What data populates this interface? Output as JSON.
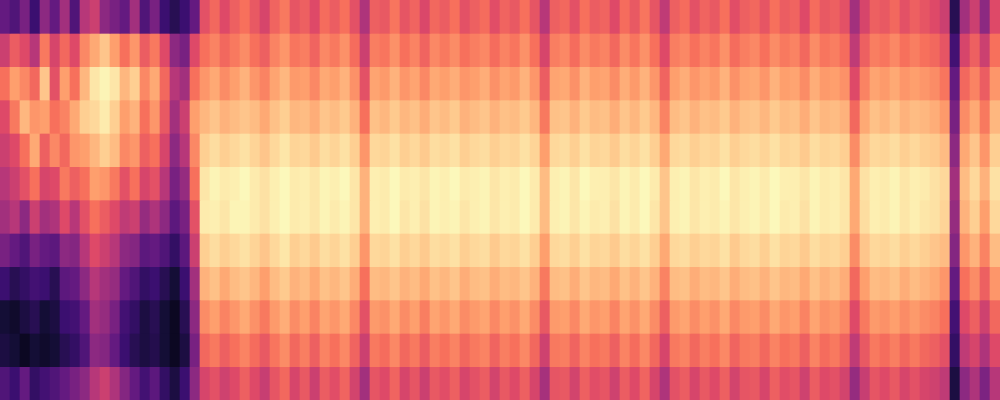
{
  "chart_data": {
    "type": "heatmap",
    "tick_labels": false,
    "grid": false,
    "color_range": [
      0,
      100
    ],
    "cells": [
      [
        30,
        55,
        70,
        60,
        55,
        50,
        45,
        35,
        20,
        10,
        12,
        25
      ],
      [
        25,
        65,
        80,
        72,
        60,
        55,
        50,
        30,
        15,
        8,
        10,
        20
      ],
      [
        35,
        60,
        75,
        85,
        70,
        62,
        40,
        25,
        18,
        12,
        6,
        30
      ],
      [
        20,
        50,
        68,
        78,
        82,
        70,
        55,
        35,
        22,
        15,
        10,
        18
      ],
      [
        40,
        72,
        88,
        80,
        66,
        58,
        45,
        30,
        20,
        10,
        8,
        22
      ],
      [
        30,
        58,
        62,
        70,
        75,
        60,
        48,
        28,
        15,
        12,
        10,
        25
      ],
      [
        45,
        68,
        80,
        74,
        68,
        72,
        60,
        40,
        28,
        20,
        15,
        30
      ],
      [
        25,
        60,
        70,
        82,
        78,
        66,
        50,
        38,
        30,
        22,
        18,
        35
      ],
      [
        50,
        75,
        85,
        90,
        80,
        70,
        62,
        50,
        40,
        30,
        25,
        40
      ],
      [
        55,
        82,
        95,
        92,
        85,
        80,
        70,
        60,
        50,
        45,
        40,
        50
      ],
      [
        40,
        88,
        98,
        96,
        90,
        78,
        65,
        55,
        45,
        42,
        38,
        55
      ],
      [
        35,
        80,
        95,
        90,
        86,
        72,
        60,
        50,
        42,
        35,
        30,
        48
      ],
      [
        30,
        70,
        85,
        80,
        75,
        62,
        52,
        40,
        30,
        22,
        20,
        38
      ],
      [
        45,
        78,
        90,
        84,
        78,
        70,
        55,
        38,
        25,
        18,
        15,
        30
      ],
      [
        25,
        65,
        75,
        70,
        66,
        58,
        42,
        28,
        18,
        12,
        12,
        22
      ],
      [
        35,
        72,
        82,
        78,
        70,
        62,
        48,
        30,
        20,
        15,
        14,
        28
      ],
      [
        20,
        60,
        68,
        64,
        58,
        50,
        40,
        25,
        15,
        10,
        10,
        18
      ],
      [
        15,
        40,
        50,
        45,
        40,
        35,
        28,
        18,
        10,
        6,
        6,
        12
      ],
      [
        20,
        35,
        45,
        55,
        50,
        42,
        35,
        28,
        20,
        15,
        12,
        20
      ],
      [
        30,
        60,
        70,
        80,
        75,
        70,
        62,
        55,
        45,
        40,
        35,
        40
      ],
      [
        62,
        70,
        78,
        85,
        90,
        95,
        96,
        90,
        84,
        76,
        68,
        58
      ],
      [
        68,
        74,
        82,
        88,
        93,
        98,
        97,
        93,
        87,
        80,
        72,
        62
      ],
      [
        60,
        68,
        76,
        84,
        90,
        96,
        95,
        90,
        82,
        74,
        66,
        56
      ],
      [
        66,
        72,
        80,
        86,
        92,
        97,
        98,
        92,
        86,
        78,
        70,
        60
      ],
      [
        70,
        76,
        84,
        88,
        94,
        99,
        98,
        94,
        88,
        82,
        74,
        66
      ],
      [
        64,
        70,
        78,
        86,
        91,
        96,
        96,
        91,
        85,
        77,
        69,
        60
      ],
      [
        58,
        66,
        74,
        82,
        88,
        94,
        94,
        88,
        80,
        72,
        64,
        54
      ],
      [
        67,
        74,
        81,
        87,
        92,
        97,
        97,
        92,
        86,
        79,
        71,
        63
      ],
      [
        72,
        78,
        85,
        90,
        95,
        99,
        99,
        95,
        89,
        83,
        76,
        68
      ],
      [
        63,
        71,
        79,
        85,
        91,
        96,
        96,
        90,
        84,
        76,
        68,
        58
      ],
      [
        66,
        73,
        80,
        86,
        92,
        97,
        97,
        92,
        86,
        80,
        73,
        64
      ],
      [
        60,
        67,
        75,
        83,
        89,
        95,
        95,
        89,
        82,
        74,
        66,
        55
      ],
      [
        69,
        75,
        82,
        88,
        93,
        98,
        98,
        93,
        87,
        81,
        74,
        65
      ],
      [
        65,
        72,
        80,
        86,
        91,
        97,
        96,
        91,
        85,
        78,
        70,
        61
      ],
      [
        70,
        77,
        84,
        89,
        94,
        99,
        98,
        94,
        88,
        82,
        75,
        67
      ],
      [
        62,
        69,
        77,
        84,
        90,
        95,
        95,
        90,
        83,
        75,
        67,
        57
      ],
      [
        48,
        55,
        62,
        70,
        78,
        84,
        84,
        78,
        70,
        62,
        55,
        45
      ],
      [
        66,
        73,
        81,
        87,
        92,
        97,
        97,
        92,
        86,
        79,
        72,
        63
      ],
      [
        64,
        71,
        79,
        85,
        91,
        96,
        96,
        91,
        85,
        77,
        69,
        60
      ],
      [
        71,
        77,
        84,
        89,
        94,
        99,
        99,
        94,
        88,
        82,
        75,
        67
      ],
      [
        63,
        70,
        78,
        85,
        90,
        96,
        95,
        90,
        84,
        76,
        68,
        58
      ],
      [
        67,
        74,
        81,
        87,
        92,
        97,
        97,
        92,
        86,
        80,
        72,
        63
      ],
      [
        59,
        67,
        75,
        83,
        89,
        95,
        94,
        89,
        82,
        73,
        65,
        55
      ],
      [
        68,
        75,
        82,
        88,
        93,
        98,
        98,
        93,
        87,
        81,
        73,
        64
      ],
      [
        65,
        72,
        80,
        86,
        92,
        97,
        97,
        92,
        85,
        78,
        70,
        61
      ],
      [
        70,
        76,
        83,
        89,
        94,
        99,
        98,
        94,
        88,
        82,
        74,
        66
      ],
      [
        62,
        70,
        78,
        84,
        90,
        96,
        95,
        90,
        83,
        76,
        68,
        58
      ],
      [
        66,
        73,
        80,
        86,
        92,
        97,
        97,
        92,
        86,
        79,
        72,
        62
      ],
      [
        69,
        75,
        83,
        88,
        93,
        98,
        98,
        93,
        87,
        81,
        74,
        65
      ],
      [
        61,
        69,
        77,
        84,
        90,
        95,
        95,
        89,
        83,
        75,
        67,
        57
      ],
      [
        67,
        74,
        81,
        87,
        92,
        97,
        97,
        92,
        86,
        80,
        73,
        64
      ],
      [
        64,
        71,
        79,
        86,
        91,
        96,
        96,
        91,
        85,
        77,
        70,
        60
      ],
      [
        70,
        77,
        84,
        89,
        94,
        99,
        99,
        94,
        88,
        82,
        75,
        66
      ],
      [
        63,
        70,
        78,
        85,
        91,
        96,
        96,
        90,
        84,
        76,
        68,
        58
      ],
      [
        50,
        58,
        65,
        72,
        80,
        86,
        86,
        80,
        72,
        64,
        56,
        46
      ],
      [
        66,
        73,
        81,
        87,
        92,
        97,
        97,
        92,
        86,
        79,
        72,
        63
      ],
      [
        68,
        75,
        82,
        88,
        93,
        98,
        98,
        93,
        87,
        80,
        73,
        64
      ],
      [
        62,
        69,
        77,
        84,
        90,
        95,
        95,
        90,
        83,
        75,
        67,
        57
      ],
      [
        70,
        76,
        84,
        89,
        94,
        99,
        98,
        94,
        88,
        82,
        74,
        66
      ],
      [
        65,
        72,
        80,
        86,
        91,
        97,
        96,
        91,
        85,
        78,
        70,
        61
      ],
      [
        67,
        74,
        81,
        87,
        92,
        97,
        97,
        92,
        86,
        80,
        72,
        63
      ],
      [
        60,
        68,
        76,
        83,
        89,
        95,
        94,
        89,
        82,
        74,
        66,
        56
      ],
      [
        69,
        76,
        83,
        88,
        93,
        98,
        98,
        93,
        87,
        81,
        74,
        65
      ],
      [
        64,
        71,
        79,
        85,
        91,
        96,
        96,
        91,
        84,
        77,
        69,
        60
      ],
      [
        71,
        77,
        84,
        89,
        94,
        99,
        99,
        94,
        88,
        82,
        75,
        67
      ],
      [
        63,
        70,
        78,
        85,
        90,
        96,
        95,
        90,
        84,
        76,
        68,
        58
      ],
      [
        52,
        60,
        67,
        74,
        82,
        88,
        88,
        82,
        74,
        66,
        58,
        48
      ],
      [
        66,
        73,
        80,
        86,
        92,
        97,
        97,
        92,
        86,
        79,
        72,
        62
      ],
      [
        69,
        75,
        83,
        88,
        93,
        98,
        98,
        93,
        87,
        81,
        74,
        65
      ],
      [
        62,
        70,
        78,
        84,
        90,
        95,
        95,
        90,
        83,
        76,
        68,
        58
      ],
      [
        67,
        74,
        81,
        87,
        92,
        97,
        97,
        92,
        86,
        80,
        73,
        64
      ],
      [
        64,
        71,
        79,
        86,
        91,
        96,
        96,
        91,
        85,
        77,
        70,
        60
      ],
      [
        70,
        77,
        84,
        89,
        94,
        99,
        98,
        94,
        88,
        82,
        75,
        66
      ],
      [
        61,
        69,
        77,
        84,
        90,
        95,
        95,
        89,
        83,
        75,
        67,
        57
      ],
      [
        66,
        73,
        81,
        87,
        92,
        97,
        97,
        92,
        86,
        79,
        72,
        63
      ],
      [
        68,
        75,
        82,
        88,
        93,
        98,
        98,
        93,
        87,
        80,
        73,
        64
      ],
      [
        63,
        70,
        78,
        85,
        91,
        96,
        96,
        90,
        84,
        76,
        68,
        58
      ],
      [
        70,
        76,
        84,
        89,
        94,
        99,
        99,
        94,
        88,
        82,
        74,
        66
      ],
      [
        65,
        72,
        80,
        86,
        91,
        97,
        96,
        91,
        85,
        78,
        70,
        61
      ],
      [
        67,
        74,
        81,
        87,
        92,
        97,
        97,
        92,
        86,
        80,
        72,
        63
      ],
      [
        60,
        68,
        76,
        83,
        89,
        95,
        94,
        89,
        82,
        74,
        66,
        56
      ],
      [
        69,
        76,
        83,
        88,
        93,
        98,
        98,
        93,
        87,
        81,
        74,
        65
      ],
      [
        64,
        71,
        79,
        85,
        91,
        96,
        96,
        91,
        84,
        77,
        69,
        60
      ],
      [
        66,
        73,
        80,
        86,
        92,
        97,
        97,
        92,
        86,
        79,
        72,
        62
      ],
      [
        62,
        69,
        77,
        84,
        90,
        95,
        95,
        90,
        83,
        75,
        67,
        57
      ],
      [
        45,
        52,
        60,
        68,
        76,
        82,
        82,
        76,
        68,
        60,
        52,
        42
      ],
      [
        58,
        66,
        74,
        82,
        88,
        94,
        93,
        88,
        80,
        72,
        64,
        54
      ],
      [
        66,
        73,
        81,
        87,
        92,
        97,
        97,
        92,
        86,
        79,
        72,
        63
      ],
      [
        64,
        71,
        79,
        85,
        91,
        96,
        96,
        91,
        85,
        77,
        69,
        60
      ],
      [
        68,
        75,
        82,
        88,
        93,
        98,
        98,
        93,
        87,
        80,
        73,
        64
      ],
      [
        62,
        70,
        78,
        84,
        90,
        95,
        95,
        90,
        83,
        76,
        68,
        58
      ],
      [
        66,
        73,
        80,
        86,
        92,
        97,
        97,
        92,
        86,
        79,
        72,
        62
      ],
      [
        63,
        70,
        78,
        85,
        90,
        96,
        95,
        90,
        84,
        76,
        68,
        58
      ],
      [
        60,
        68,
        76,
        83,
        89,
        94,
        94,
        88,
        82,
        74,
        66,
        56
      ],
      [
        55,
        63,
        71,
        79,
        86,
        92,
        91,
        86,
        78,
        70,
        62,
        52
      ],
      [
        15,
        22,
        30,
        35,
        40,
        45,
        42,
        38,
        30,
        22,
        18,
        12
      ],
      [
        45,
        58,
        68,
        76,
        82,
        86,
        84,
        78,
        70,
        60,
        52,
        40
      ],
      [
        55,
        66,
        74,
        82,
        88,
        92,
        90,
        84,
        76,
        66,
        58,
        48
      ],
      [
        40,
        55,
        65,
        72,
        78,
        84,
        80,
        74,
        66,
        56,
        48,
        36
      ],
      [
        60,
        70,
        78,
        85,
        90,
        94,
        92,
        86,
        78,
        68,
        60,
        50
      ]
    ]
  }
}
